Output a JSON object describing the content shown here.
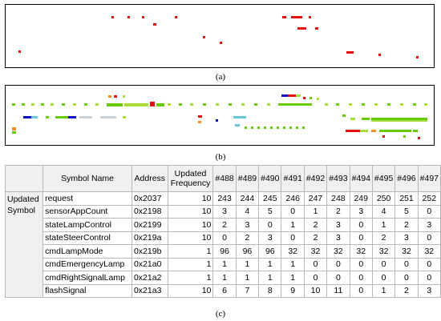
{
  "captions": {
    "a": "(a)",
    "b": "(b)",
    "c": "(c)"
  },
  "colors": {
    "red": "#e81010",
    "green": "#66cc00",
    "light_green": "#a8dd33",
    "orange": "#f09020",
    "blue": "#1010c0",
    "cyan": "#66c8dd",
    "light_grey": "#c8d0d8"
  },
  "table": {
    "headers": {
      "symbol_name": "Symbol Name",
      "address": "Address",
      "updated_frequency": "Updated Frequency",
      "builds": [
        "#488",
        "#489",
        "#490",
        "#491",
        "#492",
        "#493",
        "#494",
        "#495",
        "#496",
        "#497"
      ]
    },
    "row_group_label": "Updated Symbol",
    "rows": [
      {
        "name": "request",
        "address": "0x2037",
        "frequency": "10",
        "values": [
          "243",
          "244",
          "245",
          "246",
          "247",
          "248",
          "249",
          "250",
          "251",
          "252"
        ]
      },
      {
        "name": "sensorAppCount",
        "address": "0x2198",
        "frequency": "10",
        "values": [
          "3",
          "4",
          "5",
          "0",
          "1",
          "2",
          "3",
          "4",
          "5",
          "0"
        ]
      },
      {
        "name": "stateLampControl",
        "address": "0x2199",
        "frequency": "10",
        "values": [
          "2",
          "3",
          "0",
          "1",
          "2",
          "3",
          "0",
          "1",
          "2",
          "3"
        ]
      },
      {
        "name": "stateSteerControl",
        "address": "0x219a",
        "frequency": "10",
        "values": [
          "0",
          "2",
          "3",
          "0",
          "2",
          "3",
          "0",
          "2",
          "3",
          "0"
        ]
      },
      {
        "name": "cmdLampMode",
        "address": "0x219b",
        "frequency": "1",
        "values": [
          "96",
          "96",
          "96",
          "32",
          "32",
          "32",
          "32",
          "32",
          "32",
          "32"
        ]
      },
      {
        "name": "cmdEmergencyLamp",
        "address": "0x21a0",
        "frequency": "1",
        "values": [
          "1",
          "1",
          "1",
          "1",
          "0",
          "0",
          "0",
          "0",
          "0",
          "0"
        ]
      },
      {
        "name": "cmdRightSignalLamp",
        "address": "0x21a2",
        "frequency": "1",
        "values": [
          "1",
          "1",
          "1",
          "1",
          "0",
          "0",
          "0",
          "0",
          "0",
          "0"
        ]
      },
      {
        "name": "flashSignal",
        "address": "0x21a3",
        "frequency": "10",
        "values": [
          "6",
          "7",
          "8",
          "9",
          "10",
          "11",
          "0",
          "1",
          "2",
          "3"
        ]
      }
    ]
  }
}
